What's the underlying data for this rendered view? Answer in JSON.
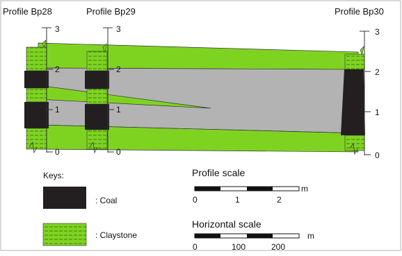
{
  "profiles": [
    {
      "name": "Profile Bp28",
      "ticks": [
        "3",
        "2",
        "1",
        "0"
      ]
    },
    {
      "name": "Profile Bp29",
      "ticks": [
        "3",
        "2",
        "1",
        "0"
      ]
    },
    {
      "name": "Profile Bp30",
      "ticks": [
        "3",
        "2",
        "1",
        "0"
      ]
    }
  ],
  "keys": {
    "title": "Keys:",
    "items": [
      {
        "label": ": Coal",
        "color": "#231f20"
      },
      {
        "label": ": Claystone",
        "color": "#7ed321"
      }
    ]
  },
  "scales": {
    "profile": {
      "title": "Profile scale",
      "unit": "m",
      "labels": [
        "0",
        "1",
        "2"
      ]
    },
    "horizontal": {
      "title": "Horizontal scale",
      "unit": "m",
      "labels": [
        "0",
        "100",
        "200"
      ]
    }
  },
  "colors": {
    "claystone": "#7ed321",
    "coal": "#231f20",
    "fill": "#b3b3b3"
  }
}
